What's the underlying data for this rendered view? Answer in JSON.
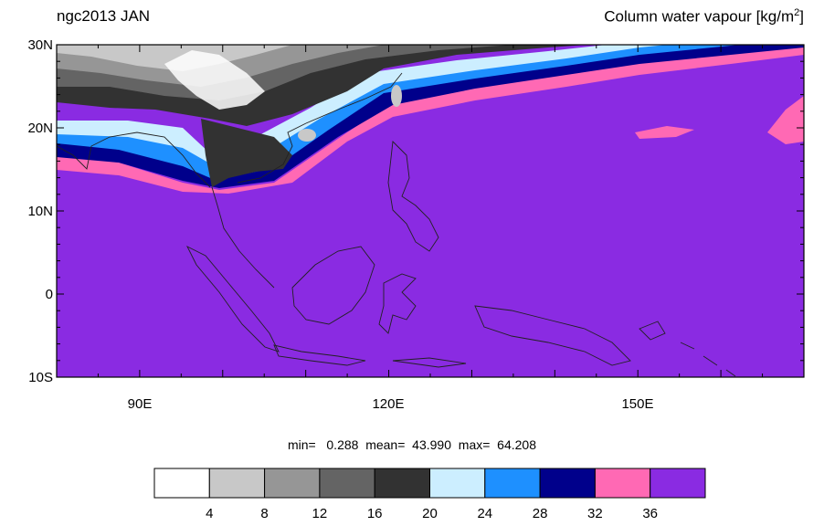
{
  "header": {
    "left_title": "ngc2013 JAN",
    "right_title_main": "Column water vapour [kg/m",
    "right_title_sup": "2",
    "right_title_end": "]"
  },
  "map": {
    "lon_range": [
      80,
      170
    ],
    "lat_range": [
      -10,
      30
    ],
    "lat_labels": [
      "30N",
      "20N",
      "10N",
      "0",
      "10S"
    ],
    "lon_labels": [
      "90E",
      "120E",
      "150E"
    ],
    "ocean_color": "#8a2be2"
  },
  "stats": {
    "text": "min=   0.288  mean=  43.990  max=  64.208"
  },
  "colorbar": {
    "levels": [
      "4",
      "8",
      "12",
      "16",
      "20",
      "24",
      "28",
      "32",
      "36"
    ],
    "colors": [
      "#ffffff",
      "#c8c8c8",
      "#969696",
      "#646464",
      "#323232",
      "#cceeff",
      "#1e90ff",
      "#00008b",
      "#ff69b4",
      "#8a2be2"
    ]
  }
}
